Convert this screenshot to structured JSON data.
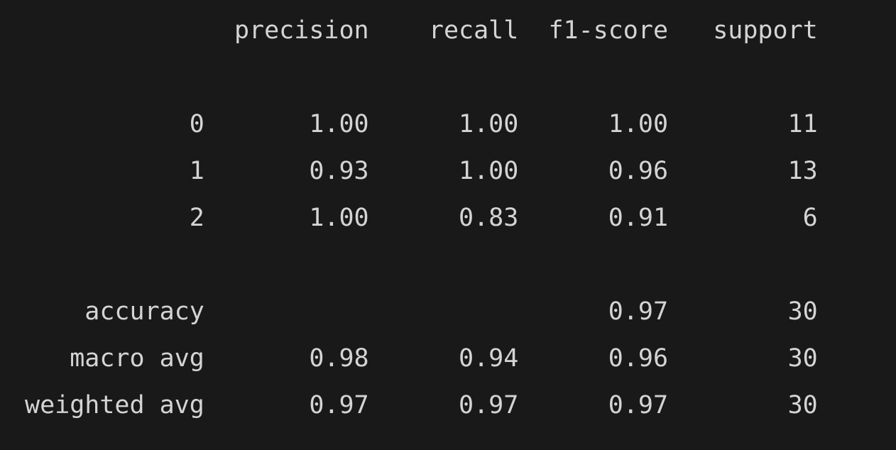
{
  "report": {
    "headers": [
      "precision",
      "recall",
      "f1-score",
      "support"
    ],
    "rows": [
      {
        "label": "0",
        "precision": "1.00",
        "recall": "1.00",
        "f1": "1.00",
        "support": "11"
      },
      {
        "label": "1",
        "precision": "0.93",
        "recall": "1.00",
        "f1": "0.96",
        "support": "13"
      },
      {
        "label": "2",
        "precision": "1.00",
        "recall": "0.83",
        "f1": "0.91",
        "support": "6"
      }
    ],
    "summary": [
      {
        "label": "accuracy",
        "precision": "",
        "recall": "",
        "f1": "0.97",
        "support": "30"
      },
      {
        "label": "macro avg",
        "precision": "0.98",
        "recall": "0.94",
        "f1": "0.96",
        "support": "30"
      },
      {
        "label": "weighted avg",
        "precision": "0.97",
        "recall": "0.97",
        "f1": "0.97",
        "support": "30"
      }
    ]
  }
}
